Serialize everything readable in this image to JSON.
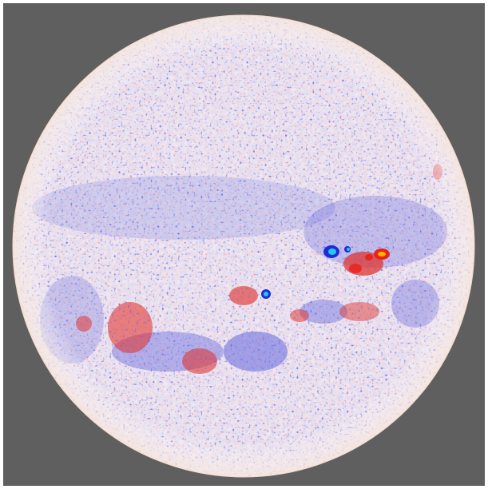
{
  "image": {
    "subject": "solar-magnetogram-disk",
    "colors": {
      "background": "#5f5f5f",
      "disk_base": "#f1ecf2",
      "positive_polarity": "#e8231c",
      "negative_polarity": "#1c22d8",
      "strong_core": "#22c9e8",
      "strong_core_warm": "#ffb400"
    }
  }
}
